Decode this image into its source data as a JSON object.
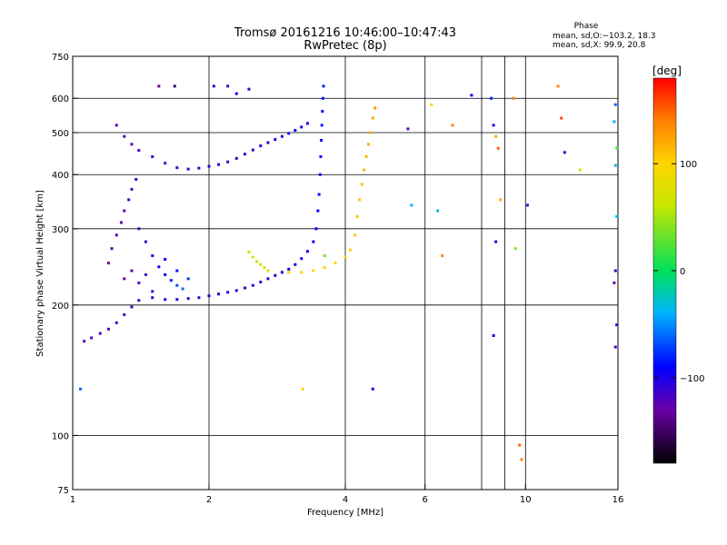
{
  "header": {
    "title_line1": "Tromsø 20161216 10:46:00–10:47:43",
    "title_line2": "RwPretec (8p)",
    "phase_title": "Phase",
    "phase_o": "mean, sd,O:−103.2, 18.3",
    "phase_x": "mean, sd,X:  99.9, 20.8"
  },
  "colorbar": {
    "unit_label": "[deg]",
    "range": [
      -180,
      180
    ],
    "ticks": [
      {
        "value": 100,
        "label": "100"
      },
      {
        "value": 0,
        "label": "0"
      },
      {
        "value": -100,
        "label": "−100"
      }
    ]
  },
  "chart_data": {
    "type": "scatter",
    "title": "Tromsø 20161216 10:46:00–10:47:43",
    "subtitle": "RwPretec (8p)",
    "xlabel": "Frequency [MHz]",
    "ylabel": "Stationary phase Virtual Height [km]",
    "xscale": "log",
    "yscale": "log",
    "xlim": [
      1,
      16
    ],
    "ylim": [
      75,
      750
    ],
    "grid": true,
    "x_ticks": [
      {
        "value": 1,
        "label": "1"
      },
      {
        "value": 2,
        "label": "2"
      },
      {
        "value": 4,
        "label": "4"
      },
      {
        "value": 6,
        "label": "6"
      },
      {
        "value": 10,
        "label": "10"
      },
      {
        "value": 16,
        "label": "16"
      }
    ],
    "x_gridlines": [
      2,
      4,
      6,
      8,
      9,
      10
    ],
    "y_ticks": [
      {
        "value": 75,
        "label": "75"
      },
      {
        "value": 100,
        "label": "100"
      },
      {
        "value": 200,
        "label": "200"
      },
      {
        "value": 300,
        "label": "300"
      },
      {
        "value": 400,
        "label": "400"
      },
      {
        "value": 500,
        "label": "500"
      },
      {
        "value": 600,
        "label": "600"
      },
      {
        "value": 750,
        "label": "750"
      }
    ],
    "y_gridlines": [
      100,
      200,
      300,
      400,
      500,
      600
    ],
    "color_by": "phase [deg]",
    "phase_colors": [
      {
        "value": -180,
        "color": "#000000"
      },
      {
        "value": -130,
        "color": "#6a00a8"
      },
      {
        "value": -90,
        "color": "#0000ff"
      },
      {
        "value": -40,
        "color": "#00b4ff"
      },
      {
        "value": 0,
        "color": "#00e05a"
      },
      {
        "value": 60,
        "color": "#c8e600"
      },
      {
        "value": 100,
        "color": "#ffd400"
      },
      {
        "value": 140,
        "color": "#ff8000"
      },
      {
        "value": 180,
        "color": "#ff0000"
      }
    ],
    "series": [
      {
        "description": "O-mode E/F trace low branch",
        "points": [
          [
            1.06,
            165,
            -125
          ],
          [
            1.1,
            168,
            -125
          ],
          [
            1.15,
            172,
            -120
          ],
          [
            1.2,
            176,
            -120
          ],
          [
            1.25,
            182,
            -118
          ],
          [
            1.3,
            190,
            -115
          ],
          [
            1.35,
            198,
            -115
          ],
          [
            1.4,
            205,
            -110
          ],
          [
            1.5,
            208,
            -110
          ],
          [
            1.6,
            206,
            -108
          ],
          [
            1.7,
            206,
            -108
          ],
          [
            1.8,
            207,
            -108
          ],
          [
            1.9,
            208,
            -106
          ],
          [
            2.0,
            210,
            -106
          ],
          [
            2.1,
            212,
            -105
          ],
          [
            2.2,
            214,
            -105
          ],
          [
            2.3,
            216,
            -104
          ],
          [
            2.4,
            219,
            -104
          ],
          [
            2.5,
            222,
            -103
          ],
          [
            2.6,
            226,
            -103
          ],
          [
            2.7,
            230,
            -102
          ],
          [
            2.8,
            234,
            -100
          ],
          [
            2.9,
            238,
            -100
          ],
          [
            3.0,
            242,
            -98
          ],
          [
            3.1,
            248,
            -98
          ],
          [
            3.2,
            256,
            -95
          ],
          [
            3.3,
            266,
            -95
          ],
          [
            3.4,
            280,
            -93
          ]
        ]
      },
      {
        "description": "O-mode F2 trace rising",
        "points": [
          [
            3.45,
            300,
            -90
          ],
          [
            3.48,
            330,
            -90
          ],
          [
            3.5,
            360,
            -88
          ],
          [
            3.52,
            400,
            -88
          ],
          [
            3.53,
            440,
            -88
          ],
          [
            3.54,
            480,
            -88
          ],
          [
            3.55,
            520,
            -86
          ],
          [
            3.56,
            560,
            -86
          ],
          [
            3.57,
            600,
            -85
          ],
          [
            3.58,
            640,
            -85
          ]
        ]
      },
      {
        "description": "O-mode upper branch",
        "points": [
          [
            1.25,
            520,
            -125
          ],
          [
            1.3,
            490,
            -123
          ],
          [
            1.35,
            470,
            -122
          ],
          [
            1.4,
            455,
            -120
          ],
          [
            1.5,
            440,
            -118
          ],
          [
            1.6,
            425,
            -116
          ],
          [
            1.7,
            415,
            -114
          ],
          [
            1.8,
            412,
            -112
          ],
          [
            1.9,
            414,
            -110
          ],
          [
            2.0,
            418,
            -108
          ],
          [
            2.1,
            422,
            -107
          ],
          [
            2.2,
            428,
            -106
          ],
          [
            2.3,
            436,
            -105
          ],
          [
            2.4,
            446,
            -104
          ],
          [
            2.5,
            456,
            -103
          ],
          [
            2.6,
            466,
            -102
          ],
          [
            2.7,
            474,
            -100
          ],
          [
            2.8,
            482,
            -100
          ],
          [
            2.9,
            490,
            -98
          ],
          [
            3.0,
            498,
            -96
          ],
          [
            3.1,
            506,
            -96
          ],
          [
            3.2,
            515,
            -95
          ],
          [
            3.3,
            525,
            -95
          ]
        ]
      },
      {
        "description": "O-mode E/F1 cluster",
        "points": [
          [
            1.2,
            250,
            -130
          ],
          [
            1.22,
            270,
            -128
          ],
          [
            1.25,
            290,
            -126
          ],
          [
            1.28,
            310,
            -124
          ],
          [
            1.3,
            330,
            -122
          ],
          [
            1.33,
            350,
            -120
          ],
          [
            1.35,
            370,
            -118
          ],
          [
            1.38,
            390,
            -118
          ],
          [
            1.4,
            300,
            -115
          ],
          [
            1.45,
            280,
            -110
          ],
          [
            1.5,
            260,
            -105
          ],
          [
            1.55,
            245,
            -100
          ],
          [
            1.6,
            235,
            -90
          ],
          [
            1.65,
            228,
            -80
          ],
          [
            1.7,
            222,
            -70
          ],
          [
            1.75,
            218,
            -60
          ],
          [
            1.3,
            230,
            -125
          ],
          [
            1.35,
            240,
            -122
          ],
          [
            1.4,
            225,
            -120
          ],
          [
            1.45,
            235,
            -118
          ],
          [
            1.5,
            215,
            -115
          ],
          [
            1.6,
            255,
            -95
          ],
          [
            1.7,
            240,
            -85
          ],
          [
            1.8,
            230,
            -75
          ]
        ]
      },
      {
        "description": "X-mode F2 trace",
        "points": [
          [
            3.0,
            238,
            95
          ],
          [
            3.2,
            238,
            96
          ],
          [
            3.4,
            240,
            97
          ],
          [
            3.6,
            244,
            98
          ],
          [
            3.8,
            250,
            100
          ],
          [
            4.0,
            258,
            100
          ],
          [
            4.1,
            268,
            102
          ],
          [
            4.2,
            290,
            104
          ],
          [
            4.25,
            320,
            106
          ],
          [
            4.3,
            350,
            108
          ],
          [
            4.35,
            380,
            110
          ],
          [
            4.4,
            410,
            112
          ],
          [
            4.45,
            440,
            115
          ],
          [
            4.5,
            470,
            118
          ],
          [
            4.55,
            500,
            120
          ],
          [
            4.6,
            540,
            125
          ],
          [
            4.65,
            570,
            130
          ]
        ]
      },
      {
        "description": "X-mode small arc",
        "points": [
          [
            2.45,
            265,
            60
          ],
          [
            2.5,
            258,
            62
          ],
          [
            2.55,
            252,
            64
          ],
          [
            2.6,
            248,
            66
          ],
          [
            2.65,
            244,
            68
          ],
          [
            2.7,
            240,
            70
          ]
        ]
      },
      {
        "description": "Scattered noise points",
        "points": [
          [
            1.04,
            128,
            -60
          ],
          [
            1.55,
            640,
            -135
          ],
          [
            1.68,
            640,
            -150
          ],
          [
            2.05,
            640,
            -110
          ],
          [
            2.2,
            640,
            -110
          ],
          [
            2.45,
            630,
            -105
          ],
          [
            2.3,
            615,
            -90
          ],
          [
            3.22,
            128,
            100
          ],
          [
            3.6,
            260,
            40
          ],
          [
            4.6,
            128,
            -100
          ],
          [
            5.5,
            510,
            -120
          ],
          [
            5.6,
            340,
            -40
          ],
          [
            6.2,
            580,
            100
          ],
          [
            6.4,
            330,
            -30
          ],
          [
            6.55,
            260,
            140
          ],
          [
            6.9,
            520,
            140
          ],
          [
            7.6,
            610,
            -90
          ],
          [
            8.4,
            600,
            -80
          ],
          [
            8.5,
            520,
            -100
          ],
          [
            8.6,
            490,
            120
          ],
          [
            8.7,
            460,
            150
          ],
          [
            8.8,
            350,
            120
          ],
          [
            8.6,
            280,
            -100
          ],
          [
            8.5,
            170,
            -100
          ],
          [
            9.4,
            600,
            140
          ],
          [
            9.5,
            270,
            40
          ],
          [
            9.7,
            95,
            150
          ],
          [
            9.8,
            88,
            140
          ],
          [
            10.1,
            340,
            -120
          ],
          [
            11.8,
            640,
            140
          ],
          [
            12.0,
            540,
            160
          ],
          [
            12.2,
            450,
            -110
          ],
          [
            13.2,
            410,
            80
          ],
          [
            15.8,
            580,
            -60
          ],
          [
            15.7,
            530,
            -40
          ],
          [
            15.9,
            460,
            20
          ],
          [
            15.8,
            420,
            -30
          ],
          [
            15.9,
            320,
            -40
          ],
          [
            15.8,
            240,
            -110
          ],
          [
            15.7,
            225,
            -130
          ],
          [
            15.9,
            180,
            -110
          ],
          [
            15.8,
            160,
            -120
          ]
        ]
      }
    ]
  }
}
